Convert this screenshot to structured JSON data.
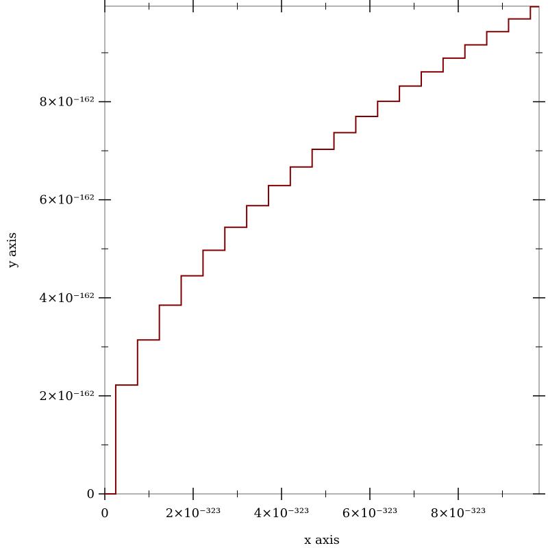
{
  "chart_data": {
    "type": "line",
    "x_label": "x axis",
    "y_label": "y axis",
    "xlim": [
      0,
      9.83
    ],
    "ylim": [
      0,
      9.95e-162
    ],
    "xticks": [
      0,
      {
        "value": 2,
        "label": "2×10⁻³²³"
      },
      {
        "value": 4,
        "label": "4×10⁻³²³"
      },
      {
        "value": 6,
        "label": "6×10⁻³²³"
      },
      {
        "value": 8,
        "label": "8×10⁻³²³"
      }
    ],
    "xminorticks": [
      1,
      3,
      5,
      7,
      9
    ],
    "yticks": [
      0,
      {
        "value": 2e-162,
        "label": "2×10⁻¹⁶²"
      },
      {
        "value": 4e-162,
        "label": "4×10⁻¹⁶²"
      },
      {
        "value": 6e-162,
        "label": "6×10⁻¹⁶²"
      },
      {
        "value": 8e-162,
        "label": "8×10⁻¹⁶²"
      }
    ],
    "yminorticks": [
      1e-162,
      3e-162,
      5e-162,
      7e-162,
      9e-162
    ],
    "series": [
      {
        "color": "#800000",
        "x": [
          0,
          0.247,
          0.247,
          0.741,
          0.741,
          1.235,
          1.235,
          1.729,
          1.729,
          2.223,
          2.223,
          2.717,
          2.717,
          3.211,
          3.211,
          3.705,
          3.705,
          4.199,
          4.199,
          4.693,
          4.693,
          5.187,
          5.187,
          5.681,
          5.681,
          6.175,
          6.175,
          6.669,
          6.669,
          7.163,
          7.163,
          7.657,
          7.657,
          8.151,
          8.151,
          8.645,
          8.645,
          9.139,
          9.139,
          9.633,
          9.633,
          9.83
        ],
        "values": [
          0,
          0,
          2.22e-162,
          2.22e-162,
          3.14e-162,
          3.14e-162,
          3.85e-162,
          3.85e-162,
          4.45e-162,
          4.45e-162,
          4.97e-162,
          4.97e-162,
          5.44e-162,
          5.44e-162,
          5.88e-162,
          5.88e-162,
          6.29e-162,
          6.29e-162,
          6.67e-162,
          6.67e-162,
          7.03e-162,
          7.03e-162,
          7.37e-162,
          7.37e-162,
          7.7e-162,
          7.7e-162,
          8.01e-162,
          8.01e-162,
          8.32e-162,
          8.32e-162,
          8.61e-162,
          8.61e-162,
          8.89e-162,
          8.89e-162,
          9.16e-162,
          9.16e-162,
          9.43e-162,
          9.43e-162,
          9.69e-162,
          9.69e-162,
          9.94e-162,
          9.94e-162
        ]
      }
    ]
  }
}
